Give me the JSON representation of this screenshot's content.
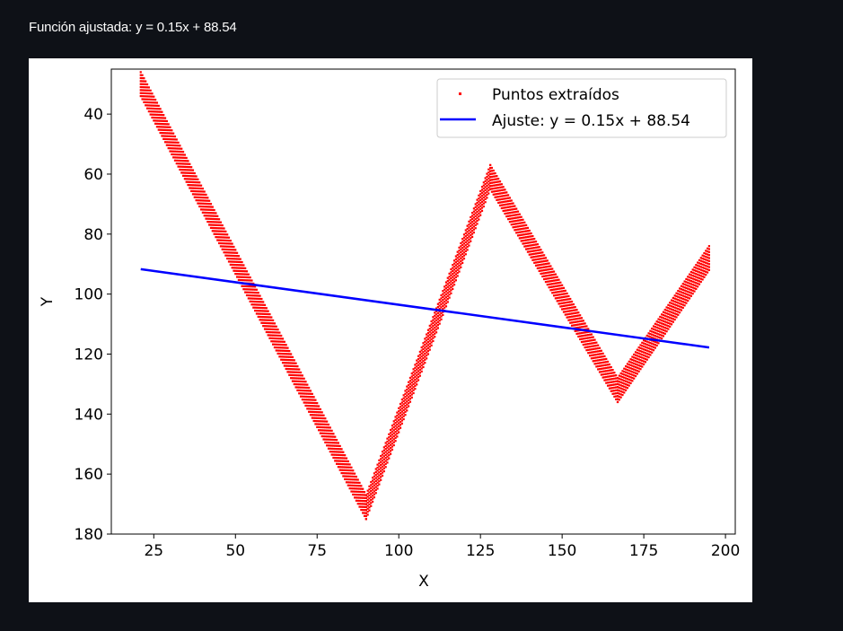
{
  "header": {
    "caption": "Función ajustada: y = 0.15x + 88.54"
  },
  "chart_data": {
    "type": "scatter",
    "xlabel": "X",
    "ylabel": "Y",
    "xlim": [
      12,
      203
    ],
    "ylim": [
      180,
      25
    ],
    "y_inverted": true,
    "x_ticks": [
      25,
      50,
      75,
      100,
      125,
      150,
      175,
      200
    ],
    "y_ticks": [
      40,
      60,
      80,
      100,
      120,
      140,
      160,
      180
    ],
    "legend_position": "top-right",
    "series": [
      {
        "name": "Puntos extraídos",
        "kind": "scatter",
        "color": "#ff0000",
        "band_thickness_y": 8,
        "path_vertices": [
          {
            "x": 21,
            "y": 30
          },
          {
            "x": 90,
            "y": 171
          },
          {
            "x": 128,
            "y": 61
          },
          {
            "x": 167,
            "y": 132
          },
          {
            "x": 195,
            "y": 88
          }
        ]
      },
      {
        "name": "Ajuste: y = 0.15x + 88.54",
        "kind": "line",
        "color": "#0000ff",
        "x": [
          21,
          195
        ],
        "y": [
          91.7,
          117.8
        ]
      }
    ]
  }
}
